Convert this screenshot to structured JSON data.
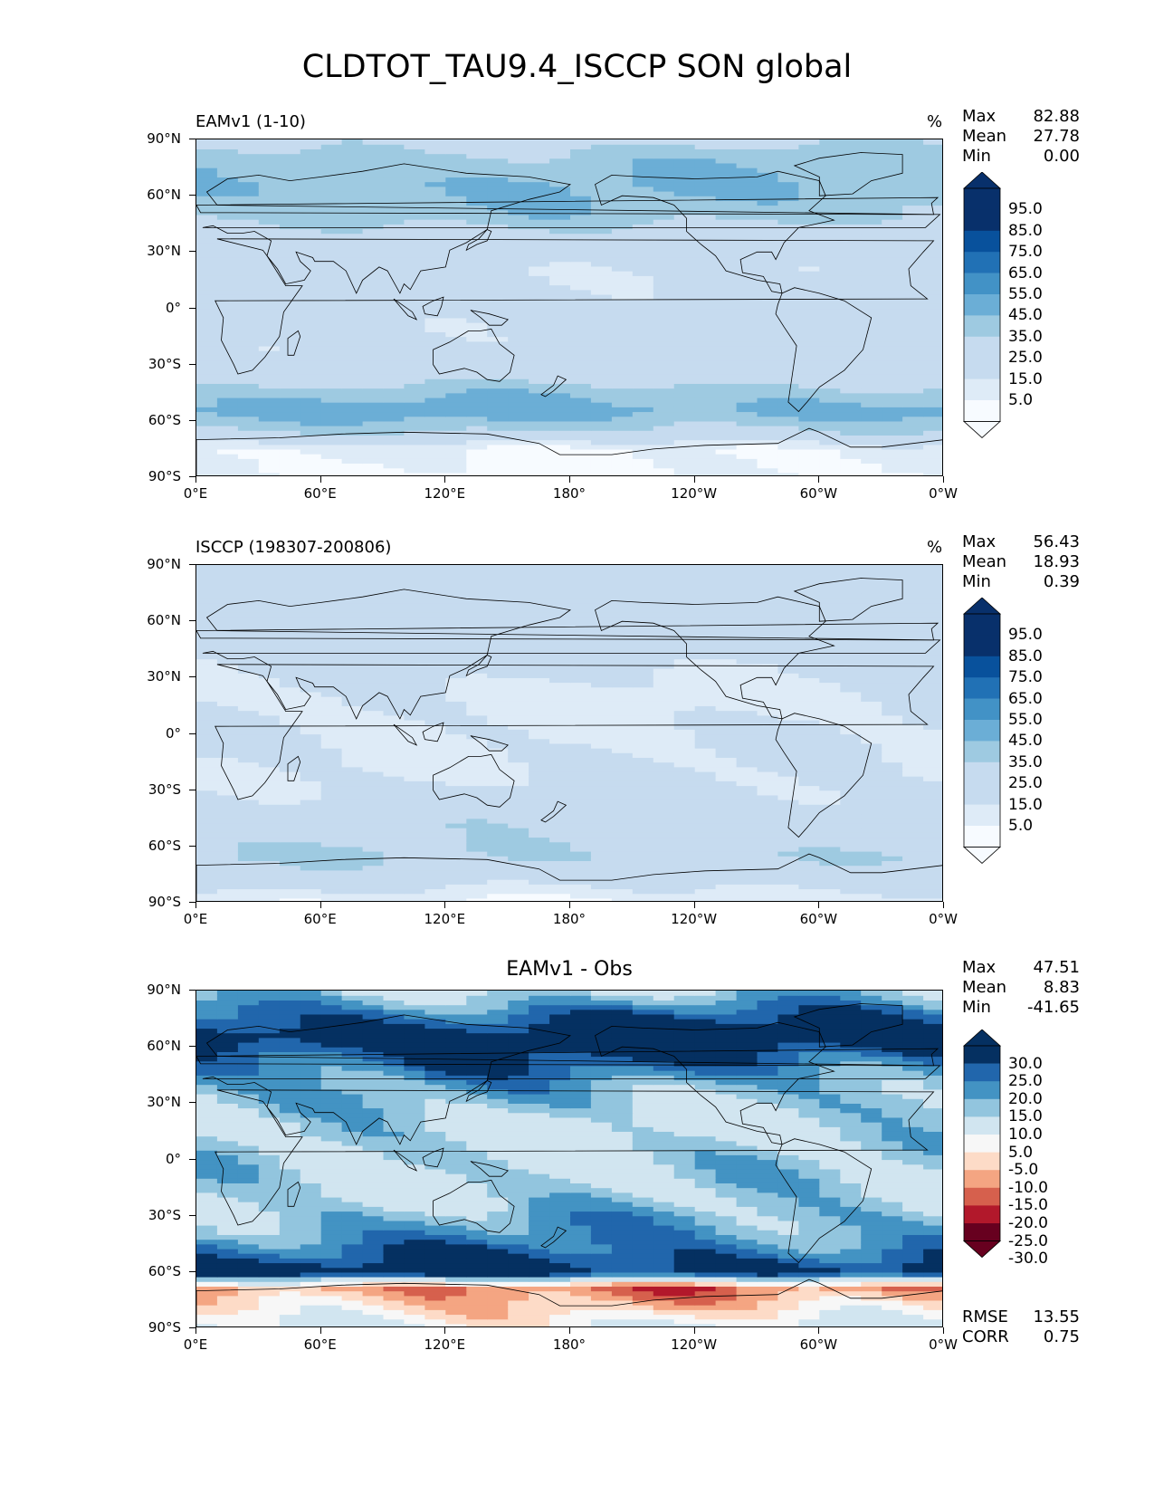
{
  "title": "CLDTOT_TAU9.4_ISCCP SON global",
  "colors": {
    "blues": [
      "#f7fbff",
      "#deebf7",
      "#c6dbef",
      "#c6dbef",
      "#9ecae1",
      "#6baed6",
      "#4292c6",
      "#2171b5",
      "#08519c",
      "#08306b"
    ],
    "diff": [
      "#67001f",
      "#b2182b",
      "#d6604d",
      "#f4a582",
      "#fddbc7",
      "#f7f7f7",
      "#d1e5f0",
      "#92c5de",
      "#4393c3",
      "#2166ac",
      "#053061"
    ],
    "land_outline": "#000000"
  },
  "panels": [
    {
      "title": "EAMv1 (1-10)",
      "title_position": "left",
      "units": "%",
      "stats": [
        {
          "label": "Max",
          "value": "82.88"
        },
        {
          "label": "Mean",
          "value": "27.78"
        },
        {
          "label": "Min",
          "value": "0.00"
        }
      ],
      "colorbar_labels": [
        "95.0",
        "85.0",
        "75.0",
        "65.0",
        "55.0",
        "45.0",
        "35.0",
        "25.0",
        "15.0",
        "5.0"
      ]
    },
    {
      "title": "ISCCP (198307-200806)",
      "title_position": "left",
      "units": "%",
      "stats": [
        {
          "label": "Max",
          "value": "56.43"
        },
        {
          "label": "Mean",
          "value": "18.93"
        },
        {
          "label": "Min",
          "value": "0.39"
        }
      ],
      "colorbar_labels": [
        "95.0",
        "85.0",
        "75.0",
        "65.0",
        "55.0",
        "45.0",
        "35.0",
        "25.0",
        "15.0",
        "5.0"
      ]
    },
    {
      "title": "EAMv1 - Obs",
      "title_position": "center",
      "units": "",
      "stats": [
        {
          "label": "Max",
          "value": "47.51"
        },
        {
          "label": "Mean",
          "value": "8.83"
        },
        {
          "label": "Min",
          "value": "-41.65"
        }
      ],
      "colorbar_labels": [
        "30.0",
        "25.0",
        "20.0",
        "15.0",
        "10.0",
        "5.0",
        "-5.0",
        "-10.0",
        "-15.0",
        "-20.0",
        "-25.0",
        "-30.0"
      ],
      "footer_stats": [
        {
          "label": "RMSE",
          "value": "13.55"
        },
        {
          "label": "CORR",
          "value": "0.75"
        }
      ]
    }
  ],
  "axes": {
    "yticks": [
      "90°N",
      "60°N",
      "30°N",
      "0°",
      "30°S",
      "60°S",
      "90°S"
    ],
    "xticks": [
      "0°E",
      "60°E",
      "120°E",
      "180°",
      "120°W",
      "60°W",
      "0°W"
    ]
  },
  "chart_data": [
    {
      "type": "heatmap",
      "title": "EAMv1 (1-10)",
      "units": "%",
      "xlim": [
        0,
        360
      ],
      "ylim": [
        -90,
        90
      ],
      "contour_levels": [
        0,
        5,
        15,
        25,
        35,
        45,
        55,
        65,
        75,
        85,
        95,
        100
      ],
      "zonal_mean_estimate": {
        "lat": [
          -90,
          -75,
          -65,
          -55,
          -45,
          -35,
          -20,
          0,
          20,
          35,
          50,
          65,
          80,
          90
        ],
        "values": [
          3,
          5,
          35,
          50,
          42,
          25,
          20,
          22,
          18,
          25,
          40,
          45,
          40,
          30
        ]
      },
      "summary": {
        "max": 82.88,
        "mean": 27.78,
        "min": 0.0
      }
    },
    {
      "type": "heatmap",
      "title": "ISCCP (198307-200806)",
      "units": "%",
      "xlim": [
        0,
        360
      ],
      "ylim": [
        -90,
        90
      ],
      "contour_levels": [
        0,
        5,
        15,
        25,
        35,
        45,
        55,
        65,
        75,
        85,
        95,
        100
      ],
      "zonal_mean_estimate": {
        "lat": [
          -90,
          -75,
          -65,
          -55,
          -45,
          -35,
          -20,
          0,
          20,
          35,
          50,
          65,
          80,
          90
        ],
        "values": [
          5,
          25,
          35,
          30,
          28,
          20,
          15,
          15,
          12,
          18,
          25,
          22,
          25,
          25
        ]
      },
      "summary": {
        "max": 56.43,
        "mean": 18.93,
        "min": 0.39
      }
    },
    {
      "type": "heatmap",
      "title": "EAMv1 - Obs",
      "xlim": [
        0,
        360
      ],
      "ylim": [
        -90,
        90
      ],
      "contour_levels": [
        -35,
        -30,
        -25,
        -20,
        -15,
        -10,
        -5,
        5,
        10,
        15,
        20,
        25,
        30,
        35
      ],
      "zonal_mean_estimate": {
        "lat": [
          -90,
          -75,
          -68,
          -60,
          -50,
          -40,
          -20,
          0,
          20,
          40,
          55,
          65,
          80,
          90
        ],
        "values": [
          -3,
          -15,
          -20,
          25,
          18,
          12,
          5,
          5,
          3,
          10,
          20,
          28,
          15,
          5
        ]
      },
      "summary": {
        "max": 47.51,
        "mean": 8.83,
        "min": -41.65,
        "rmse": 13.55,
        "corr": 0.75
      }
    }
  ]
}
